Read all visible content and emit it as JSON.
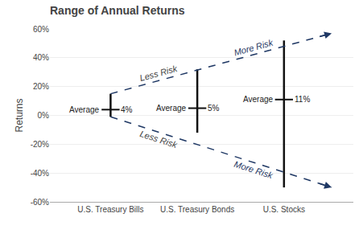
{
  "chart_data": {
    "type": "range",
    "title": "Range of Annual Returns",
    "ylabel": "Returns",
    "categories": [
      "U.S. Treasury Bills",
      "U.S. Treasury Bonds",
      "U.S. Stocks"
    ],
    "highs": [
      15,
      32,
      52
    ],
    "lows": [
      -1,
      -12,
      -50
    ],
    "values": [
      4,
      5,
      11
    ],
    "value_labels": [
      "4%",
      "5%",
      "11%"
    ],
    "avg_label": "Average",
    "color": "#111111",
    "annotations": [
      {
        "text": "Less Risk",
        "color": "#444444"
      },
      {
        "text": "More Risk",
        "color": "#1F3864"
      },
      {
        "text": "Less Risk",
        "color": "#444444"
      },
      {
        "text": "More Risk",
        "color": "#1F3864"
      }
    ],
    "ylim": [
      -60,
      60
    ],
    "yticks": [
      {
        "value": -60,
        "label": "-60%"
      },
      {
        "value": -40,
        "label": "-40%"
      },
      {
        "value": -20,
        "label": "-20%"
      },
      {
        "value": 0,
        "label": "0%"
      },
      {
        "value": 20,
        "label": "20%"
      },
      {
        "value": 40,
        "label": "40%"
      },
      {
        "value": 60,
        "label": "60%"
      }
    ],
    "grid": true
  }
}
